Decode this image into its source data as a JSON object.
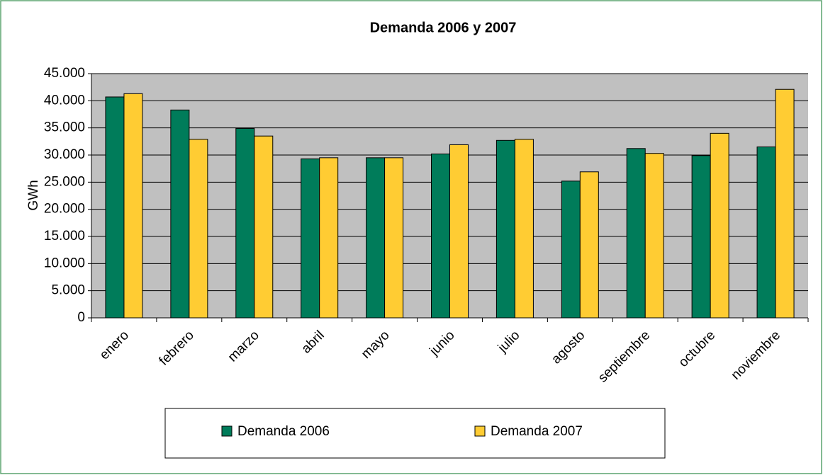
{
  "chart_data": {
    "type": "bar",
    "title": "Demanda 2006 y 2007",
    "y_label": "GWh",
    "categories": [
      "enero",
      "febrero",
      "marzo",
      "abril",
      "mayo",
      "junio",
      "julio",
      "agosto",
      "septiembre",
      "octubre",
      "noviembre"
    ],
    "series": [
      {
        "name": "Demanda 2006",
        "color": "#007c5a",
        "values": [
          40700,
          38300,
          34900,
          29300,
          29500,
          30200,
          32700,
          25200,
          31200,
          29900,
          31500
        ]
      },
      {
        "name": "Demanda 2007",
        "color": "#ffcc33",
        "values": [
          41300,
          32900,
          33500,
          29500,
          29500,
          31900,
          32900,
          26900,
          30300,
          34000,
          42100
        ]
      }
    ],
    "ylim": [
      0,
      45000
    ],
    "yticks": [
      0,
      {
        "value": 5000,
        "label": "5.000"
      },
      {
        "value": 10000,
        "label": "10.000"
      },
      {
        "value": 15000,
        "label": "15.000"
      },
      {
        "value": 20000,
        "label": "20.000"
      },
      {
        "value": 25000,
        "label": "25.000"
      },
      {
        "value": 30000,
        "label": "30.000"
      },
      {
        "value": 35000,
        "label": "35.000"
      },
      {
        "value": 40000,
        "label": "40.000"
      },
      {
        "value": 45000,
        "label": "45.000"
      }
    ],
    "grid": true,
    "legend": "bottom"
  }
}
